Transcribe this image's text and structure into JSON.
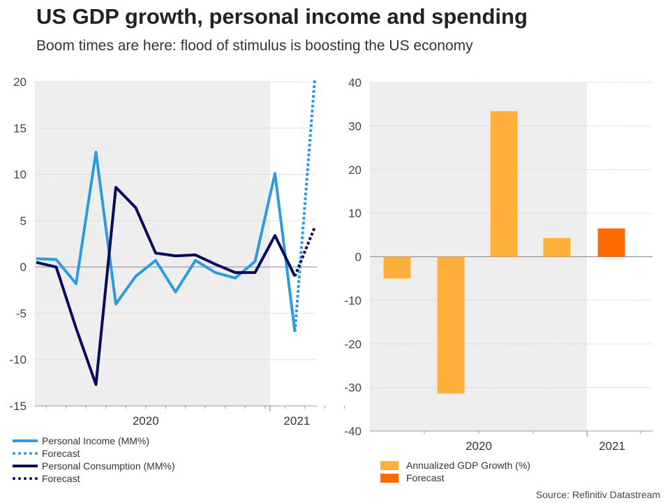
{
  "title": "US GDP growth, personal income and spending",
  "subtitle": "Boom times are here: flood of stimulus is boosting the US economy",
  "source": "Source: Refinitiv Datastream",
  "colors": {
    "income": "#2e9be0",
    "consumption": "#0a0a5c",
    "gdp": "#ffb03b",
    "gdp_forecast": "#ff6a00",
    "shade": "#eeeeee",
    "grid": "#cccccc"
  },
  "chart_data": [
    {
      "type": "line",
      "ylim": [
        -15,
        20
      ],
      "yticks": [
        -15,
        -10,
        -5,
        0,
        5,
        10,
        15,
        20
      ],
      "x_labels": [
        "2020",
        "2021"
      ],
      "shaded": true,
      "legend": [
        "Personal Income (MM%)",
        "Forecast",
        "Personal Consumption (MM%)",
        "Forecast"
      ],
      "series": [
        {
          "name": "Personal Income (MM%)",
          "values": [
            0.9,
            0.8,
            -1.8,
            12.4,
            -4.0,
            -1.0,
            0.7,
            -2.7,
            0.7,
            -0.6,
            -1.2,
            0.6,
            10.1,
            -7.0
          ]
        },
        {
          "name": "Forecast",
          "forecast_of": "Personal Income (MM%)",
          "values": [
            -7.0,
            20.3
          ]
        },
        {
          "name": "Personal Consumption (MM%)",
          "values": [
            0.5,
            0.0,
            -6.6,
            -12.7,
            8.6,
            6.4,
            1.5,
            1.2,
            1.3,
            0.3,
            -0.6,
            -0.6,
            3.4,
            -1.0
          ]
        },
        {
          "name": "Forecast",
          "forecast_of": "Personal Consumption (MM%)",
          "values": [
            -1.0,
            4.3
          ]
        }
      ]
    },
    {
      "type": "bar",
      "ylim": [
        -40,
        40
      ],
      "yticks": [
        -40,
        -30,
        -20,
        -10,
        0,
        10,
        20,
        30,
        40
      ],
      "x_labels": [
        "2020",
        "2021"
      ],
      "legend": [
        "Annualized GDP Growth (%)",
        "Forecast"
      ],
      "series": [
        {
          "name": "Annualized GDP Growth (%)",
          "values": [
            -5.0,
            -31.4,
            33.4,
            4.3
          ]
        },
        {
          "name": "Forecast",
          "values": [
            6.5
          ]
        }
      ]
    }
  ]
}
